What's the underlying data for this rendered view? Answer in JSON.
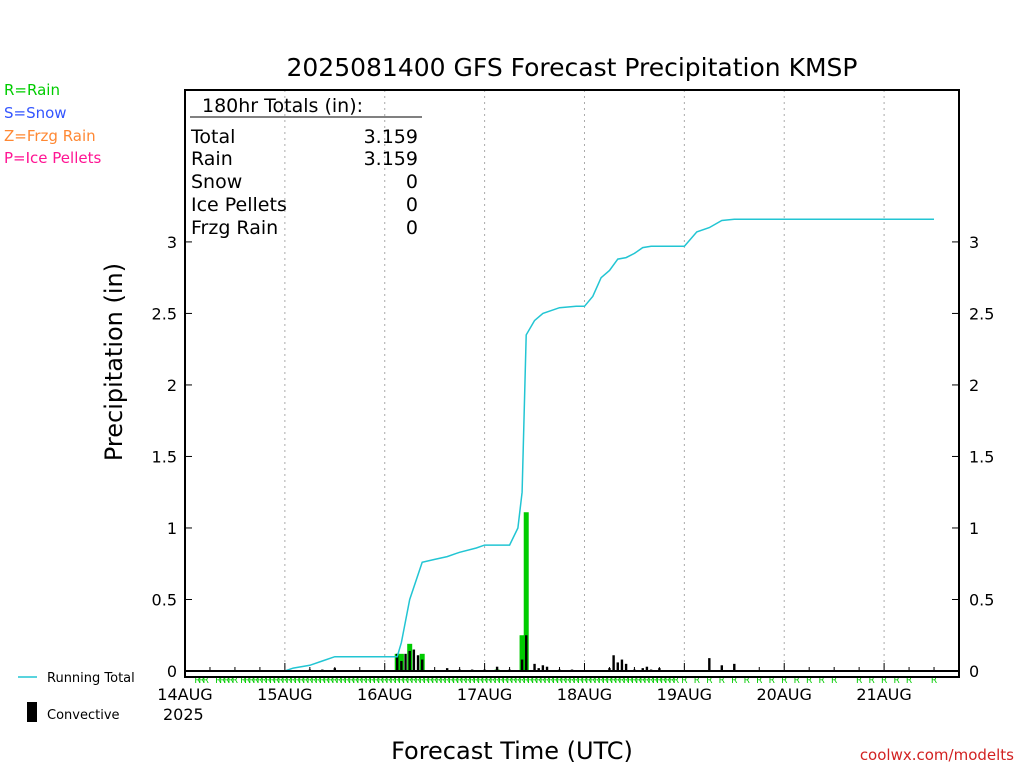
{
  "chart_data": {
    "type": "bar",
    "title": "2025081400 GFS Forecast Precipitation KMSP",
    "xlabel": "Forecast Time (UTC)",
    "ylabel": "Precipitation (in)",
    "year_label": "2025",
    "credit": "coolwx.com/modelts",
    "ylim": [
      0,
      3.5
    ],
    "yticks": [
      "0",
      "0.5",
      "1",
      "1.5",
      "2",
      "2.5",
      "3"
    ],
    "xticks": [
      "14AUG",
      "15AUG",
      "16AUG",
      "17AUG",
      "18AUG",
      "19AUG",
      "20AUG",
      "21AUG"
    ],
    "xlim_hours": [
      0,
      186
    ],
    "grid": "vertical dotted at 00Z",
    "legend_types": [
      {
        "text": "R=Rain",
        "color": "#00cc00"
      },
      {
        "text": "S=Snow",
        "color": "#3355ff"
      },
      {
        "text": "Z=Frzg Rain",
        "color": "#ff8833"
      },
      {
        "text": "P=Ice Pellets",
        "color": "#ff1493"
      }
    ],
    "legend_series": [
      {
        "text": "Running Total",
        "color": "#22c5d3"
      },
      {
        "text": "Convective",
        "color": "#000000"
      }
    ],
    "totals": {
      "header": "180hr Totals (in):",
      "rows": [
        {
          "label": "Total",
          "value": "3.159"
        },
        {
          "label": "Rain",
          "value": "3.159"
        },
        {
          "label": "Snow",
          "value": "0"
        },
        {
          "label": "Ice Pellets",
          "value": "0"
        },
        {
          "label": "Frzg Rain",
          "value": "0"
        }
      ]
    },
    "running_total": {
      "x_hours": [
        0,
        24,
        26,
        30,
        33,
        36,
        48,
        51,
        52,
        54,
        57,
        60,
        63,
        65,
        66,
        70,
        72,
        75,
        78,
        80,
        81,
        82,
        84,
        86,
        88,
        90,
        94,
        96,
        98,
        100,
        102,
        104,
        106,
        108,
        110,
        112,
        114,
        116,
        120,
        123,
        126,
        129,
        132,
        135,
        136,
        138,
        140,
        142,
        144,
        150,
        180
      ],
      "values": [
        0,
        0,
        0.02,
        0.04,
        0.07,
        0.1,
        0.1,
        0.1,
        0.2,
        0.5,
        0.76,
        0.78,
        0.8,
        0.82,
        0.83,
        0.86,
        0.88,
        0.88,
        0.88,
        1.0,
        1.25,
        2.35,
        2.45,
        2.5,
        2.52,
        2.54,
        2.55,
        2.55,
        2.62,
        2.75,
        2.8,
        2.88,
        2.89,
        2.92,
        2.96,
        2.97,
        2.97,
        2.97,
        2.97,
        3.07,
        3.1,
        3.15,
        3.159,
        3.159,
        3.159,
        3.159,
        3.159,
        3.159,
        3.159,
        3.159,
        3.159
      ]
    },
    "series": [
      {
        "name": "Rain",
        "color": "#00cc00",
        "x_hours": [
          51,
          52,
          54,
          57,
          75,
          81,
          82
        ],
        "values": [
          0.12,
          0.12,
          0.19,
          0.12,
          0.01,
          0.25,
          1.11
        ]
      },
      {
        "name": "Convective",
        "color": "#000000",
        "x_hours": [
          24,
          30,
          33,
          36,
          51,
          52,
          53,
          54,
          55,
          56,
          57,
          63,
          66,
          69,
          72,
          75,
          78,
          81,
          82,
          84,
          85,
          86,
          87,
          90,
          93,
          102,
          103,
          104,
          105,
          106,
          108,
          110,
          111,
          112,
          114,
          126,
          129,
          132
        ],
        "values": [
          0.005,
          0.01,
          0.01,
          0.02,
          0.12,
          0.07,
          0.12,
          0.14,
          0.15,
          0.11,
          0.08,
          0.02,
          0.01,
          0.01,
          0.01,
          0.03,
          0.01,
          0.08,
          0.25,
          0.05,
          0.02,
          0.04,
          0.03,
          0.01,
          0.01,
          0.02,
          0.11,
          0.06,
          0.08,
          0.05,
          0.01,
          0.02,
          0.03,
          0.01,
          0.02,
          0.09,
          0.04,
          0.05
        ]
      }
    ],
    "type_markers": {
      "letter": "R",
      "color": "#00cc00",
      "x_hours": [
        3,
        4,
        5,
        8,
        9,
        10,
        11,
        12,
        14,
        15,
        16,
        17,
        18,
        19,
        20,
        21,
        22,
        23,
        24,
        25,
        26,
        27,
        28,
        29,
        30,
        31,
        32,
        33,
        34,
        35,
        36,
        37,
        38,
        39,
        40,
        41,
        42,
        43,
        44,
        45,
        46,
        47,
        48,
        49,
        50,
        51,
        52,
        53,
        54,
        55,
        56,
        57,
        58,
        59,
        60,
        61,
        62,
        63,
        64,
        65,
        66,
        67,
        68,
        69,
        70,
        71,
        72,
        73,
        74,
        75,
        76,
        77,
        78,
        79,
        80,
        81,
        82,
        83,
        84,
        85,
        86,
        87,
        88,
        89,
        90,
        91,
        92,
        93,
        94,
        95,
        96,
        97,
        98,
        99,
        100,
        101,
        102,
        103,
        104,
        105,
        106,
        107,
        108,
        109,
        110,
        111,
        112,
        113,
        114,
        115,
        116,
        117,
        118,
        120,
        123,
        126,
        129,
        132,
        135,
        138,
        141,
        144,
        147,
        150,
        153,
        156,
        162,
        165,
        168,
        171,
        174,
        180
      ]
    }
  }
}
